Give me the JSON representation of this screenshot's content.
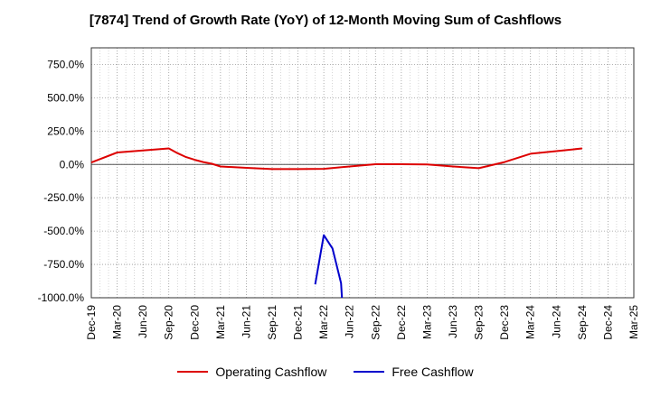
{
  "chart_data": {
    "type": "line",
    "title": "[7874]  Trend of Growth Rate (YoY) of 12-Month Moving Sum of Cashflows",
    "xlabel": "",
    "ylabel": "",
    "ylim": [
      -1000,
      875
    ],
    "y_ticks": [
      "750.0%",
      "500.0%",
      "250.0%",
      "0.0%",
      "-250.0%",
      "-500.0%",
      "-750.0%",
      "-1000.0%"
    ],
    "y_tick_values": [
      750,
      500,
      250,
      0,
      -250,
      -500,
      -750,
      -1000
    ],
    "x_ticks": [
      "Dec-19",
      "Mar-20",
      "Jun-20",
      "Sep-20",
      "Dec-20",
      "Mar-21",
      "Jun-21",
      "Sep-21",
      "Dec-21",
      "Mar-22",
      "Jun-22",
      "Sep-22",
      "Dec-22",
      "Mar-23",
      "Jun-23",
      "Sep-23",
      "Dec-23",
      "Mar-24",
      "Jun-24",
      "Sep-24",
      "Dec-24",
      "Mar-25"
    ],
    "grid": true,
    "legend_position": "bottom",
    "series": [
      {
        "name": "Operating Cashflow",
        "color": "#dd0000",
        "x": [
          "Dec-19",
          "Mar-20",
          "Jun-20",
          "Sep-20",
          "Oct-20",
          "Nov-20",
          "Dec-20",
          "Jan-21",
          "Feb-21",
          "Mar-21",
          "Jun-21",
          "Sep-21",
          "Dec-21",
          "Mar-22",
          "Jun-22",
          "Sep-22",
          "Dec-22",
          "Mar-23",
          "Jun-23",
          "Sep-23",
          "Dec-23",
          "Mar-24",
          "Jun-24",
          "Sep-24"
        ],
        "values": [
          15,
          90,
          105,
          120,
          85,
          55,
          35,
          18,
          5,
          -15,
          -25,
          -35,
          -35,
          -33,
          -15,
          2,
          2,
          0,
          -15,
          -28,
          18,
          80,
          100,
          120
        ]
      },
      {
        "name": "Free Cashflow",
        "color": "#0000cc",
        "x": [
          "Feb-22",
          "Mar-22",
          "Apr-22",
          "May-22",
          "May-22"
        ],
        "values": [
          -900,
          -530,
          -630,
          -890,
          -1000
        ]
      }
    ]
  }
}
